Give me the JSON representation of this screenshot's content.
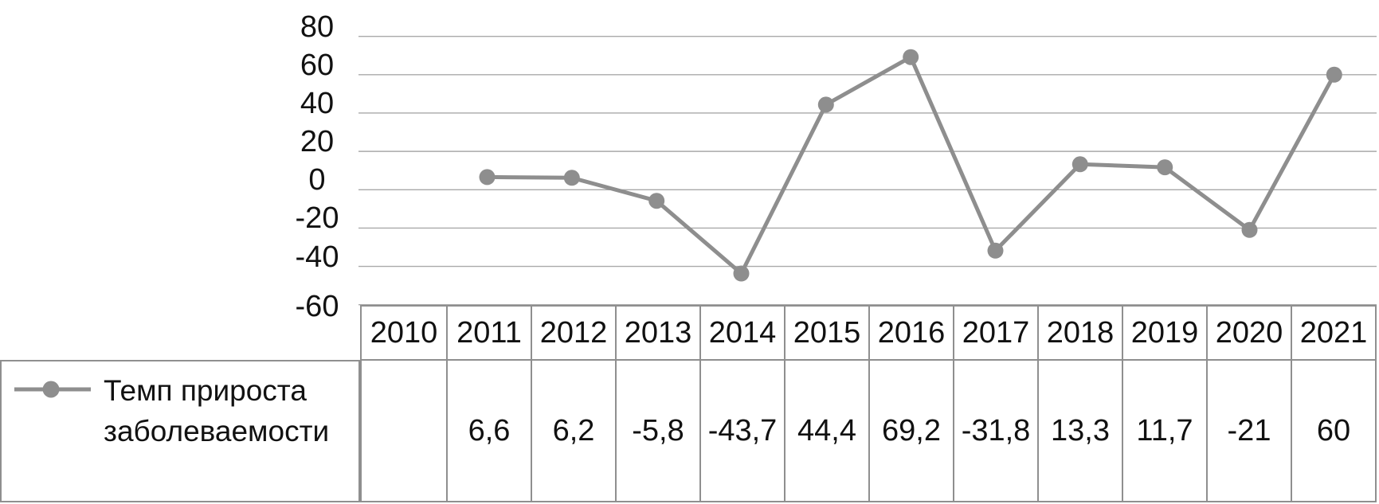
{
  "chart_data": {
    "type": "line",
    "title": "",
    "categories": [
      "2010",
      "2011",
      "2012",
      "2013",
      "2014",
      "2015",
      "2016",
      "2017",
      "2018",
      "2019",
      "2020",
      "2021"
    ],
    "series": [
      {
        "name": "Темп прироста заболеваемости",
        "values": [
          null,
          6.6,
          6.2,
          -5.8,
          -43.7,
          44.4,
          69.2,
          -31.8,
          13.3,
          11.7,
          -21,
          60
        ]
      }
    ],
    "xlabel": "",
    "ylabel": "",
    "ylim": [
      -60,
      80
    ],
    "yticks": [
      80,
      60,
      40,
      20,
      0,
      -20,
      -40,
      -60
    ],
    "ytick_labels": [
      "80",
      "60",
      "40",
      "20",
      "0",
      "-20",
      "-40",
      "-60"
    ],
    "grid": true,
    "legend_position": "bottom-left",
    "marker": "circle",
    "colors": {
      "series": "#8e8e8e",
      "gridline": "#a9a9a9",
      "table_border": "#8f8f8f",
      "text": "#111111"
    }
  },
  "table": {
    "columns": [
      "2010",
      "2011",
      "2012",
      "2013",
      "2014",
      "2015",
      "2016",
      "2017",
      "2018",
      "2019",
      "2020",
      "2021"
    ],
    "rows": [
      {
        "label": "Темп прироста заболеваемости",
        "values": [
          "",
          "6,6",
          "6,2",
          "-5,8",
          "-43,7",
          "44,4",
          "69,2",
          "-31,8",
          "13,3",
          "11,7",
          "-21",
          "60"
        ]
      }
    ]
  },
  "legend": {
    "label": "Темп прироста заболеваемости"
  }
}
